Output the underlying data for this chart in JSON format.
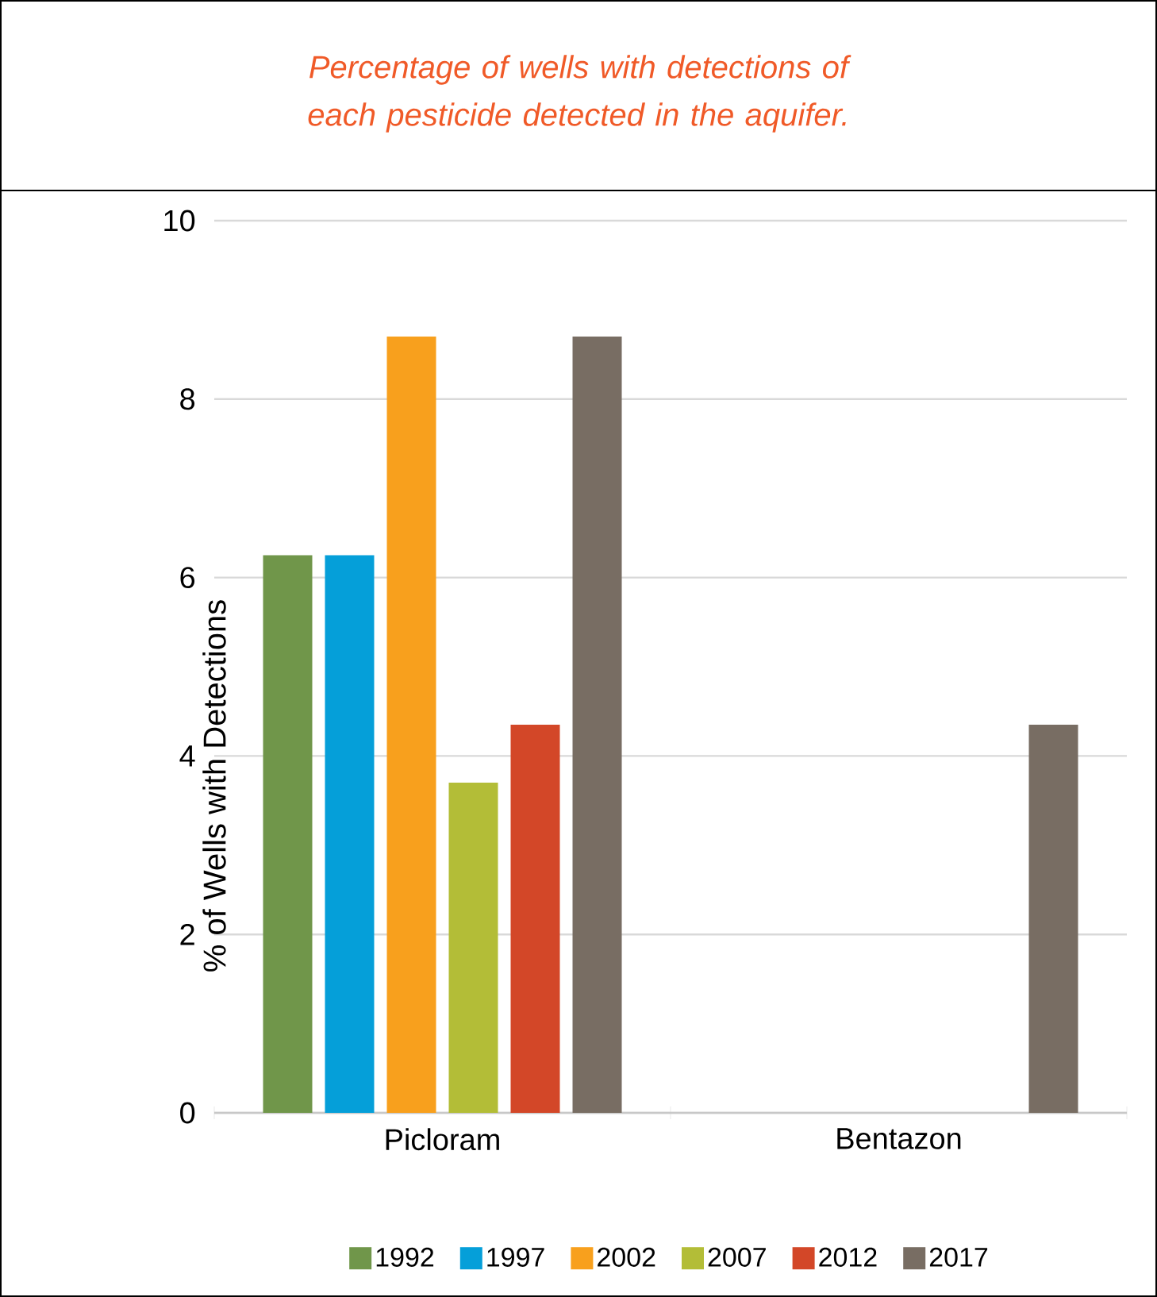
{
  "chart_data": {
    "type": "bar",
    "title": "Percentage of wells with detections of each pesticide detected in the aquifer.",
    "ylabel": "% of Wells with Detections",
    "categories": [
      "Picloram",
      "Bentazon"
    ],
    "series": [
      {
        "name": "1992",
        "color": "#70964a",
        "values": [
          6.25,
          0
        ]
      },
      {
        "name": "1997",
        "color": "#059fd9",
        "values": [
          6.25,
          0
        ]
      },
      {
        "name": "2002",
        "color": "#f8a01d",
        "values": [
          8.7,
          0
        ]
      },
      {
        "name": "2007",
        "color": "#b3bd37",
        "values": [
          3.7,
          0
        ]
      },
      {
        "name": "2012",
        "color": "#d34728",
        "values": [
          4.35,
          0
        ]
      },
      {
        "name": "2017",
        "color": "#786d63",
        "values": [
          8.7,
          4.35
        ]
      }
    ],
    "ylim": [
      0,
      10
    ],
    "yticks": [
      0,
      2,
      4,
      6,
      8,
      10
    ],
    "grid": "y",
    "legend": "bottom"
  }
}
